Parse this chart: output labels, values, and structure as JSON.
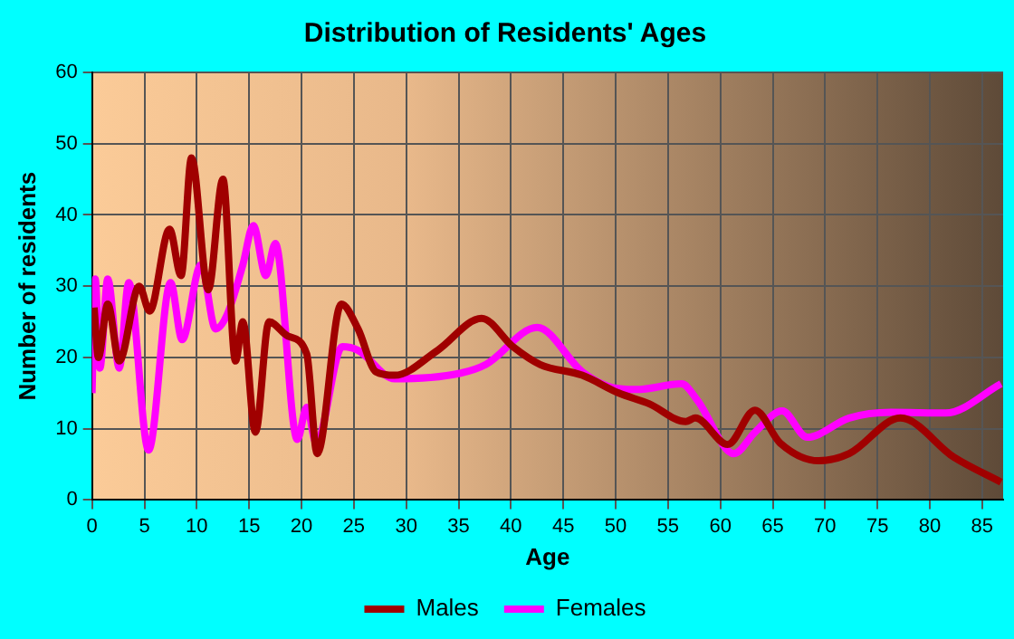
{
  "chart_data": {
    "type": "line",
    "title": "Distribution of Residents' Ages",
    "xlabel": "Age",
    "ylabel": "Number of residents",
    "xlim": [
      0,
      87
    ],
    "xticks": [
      0,
      5,
      10,
      15,
      20,
      25,
      30,
      35,
      40,
      45,
      50,
      55,
      60,
      65,
      70,
      75,
      80,
      85
    ],
    "ylim": [
      0,
      60
    ],
    "yticks": [
      0,
      10,
      20,
      30,
      40,
      50,
      60
    ],
    "grid": true,
    "legend": "bottom",
    "marker": "none",
    "series": [
      {
        "name": "Males",
        "color": "#a00000",
        "x": [
          0.2,
          0.6,
          1.5,
          2.6,
          4.5,
          5.5,
          7.4,
          8.5,
          9.5,
          11.1,
          12.5,
          13.7,
          14.4,
          15.6,
          16.9,
          18.7,
          20.5,
          21.5,
          23.8,
          25.4,
          27.1,
          28.9,
          33,
          37.2,
          40.2,
          42.8,
          46.8,
          50.3,
          53.2,
          56.7,
          57.6,
          60.7,
          63.3,
          65.7,
          69.4,
          72.3,
          77.2,
          82.3,
          86.8
        ],
        "values": [
          27,
          20,
          27.5,
          19.5,
          30,
          26.5,
          38,
          31.5,
          48,
          29.5,
          45,
          19.5,
          25,
          9.5,
          25,
          23,
          20.5,
          6.5,
          27.5,
          24,
          18,
          17.5,
          21,
          25.5,
          21.5,
          19,
          17.5,
          15,
          13.5,
          11,
          11.5,
          7.8,
          12.6,
          8,
          5.5,
          6.5,
          11.5,
          6,
          2.5
        ]
      },
      {
        "name": "Females",
        "color": "#ff00ff",
        "x": [
          0,
          0.3,
          0.75,
          1.5,
          2.6,
          3.5,
          5.4,
          7.5,
          8.6,
          10.4,
          11.8,
          12.9,
          14.4,
          15.4,
          16.6,
          17.5,
          19.6,
          20.5,
          21.4,
          23.9,
          25.4,
          28.9,
          35.2,
          37.6,
          42.5,
          46.8,
          49.2,
          52,
          56.3,
          57.8,
          61.3,
          63.3,
          65.9,
          68.3,
          72.3,
          76.3,
          81.5,
          86.8
        ],
        "values": [
          15,
          31,
          18.5,
          31,
          18.5,
          30.5,
          7,
          30.5,
          22.5,
          33,
          24,
          26,
          33,
          38.5,
          31.5,
          36,
          8.5,
          13,
          8,
          21.5,
          21,
          17,
          17.8,
          19,
          24.2,
          18,
          16,
          15.5,
          16.3,
          14,
          6.5,
          9.5,
          12.5,
          8.8,
          11.5,
          12.3,
          12.2,
          16.3
        ]
      }
    ]
  }
}
